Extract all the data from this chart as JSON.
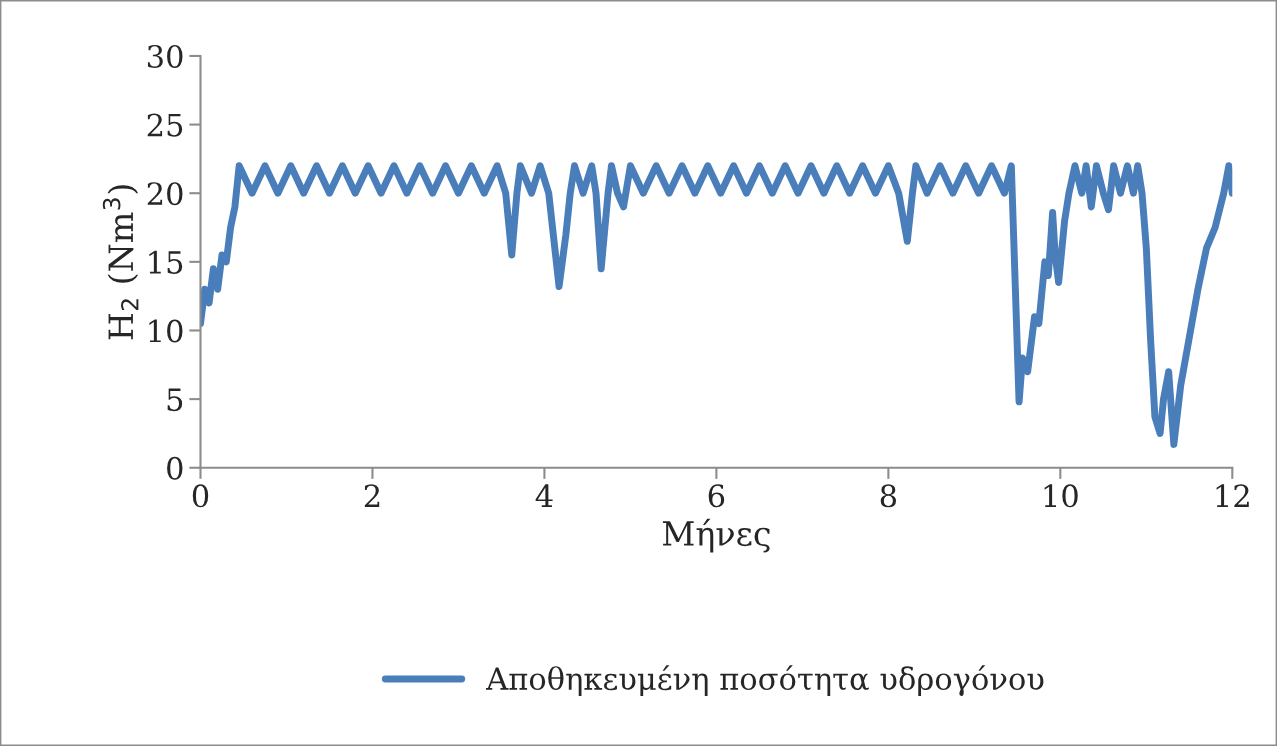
{
  "chart_data": {
    "type": "line",
    "xlabel": "Μήνες",
    "ylabel": "H$_{2}$ (Nm$^{3}$)",
    "x": [
      0,
      0.05,
      0.1,
      0.15,
      0.2,
      0.25,
      0.3,
      0.35,
      0.4,
      0.45,
      0.6,
      0.75,
      0.9,
      1.05,
      1.2,
      1.35,
      1.5,
      1.65,
      1.8,
      1.95,
      2.1,
      2.25,
      2.4,
      2.55,
      2.7,
      2.85,
      3.0,
      3.15,
      3.3,
      3.45,
      3.55,
      3.62,
      3.68,
      3.72,
      3.85,
      3.95,
      4.05,
      4.17,
      4.25,
      4.3,
      4.35,
      4.45,
      4.55,
      4.6,
      4.66,
      4.74,
      4.78,
      4.85,
      4.92,
      5.0,
      5.15,
      5.3,
      5.45,
      5.6,
      5.75,
      5.9,
      6.05,
      6.2,
      6.35,
      6.5,
      6.65,
      6.8,
      6.95,
      7.1,
      7.25,
      7.4,
      7.55,
      7.7,
      7.85,
      8.0,
      8.12,
      8.22,
      8.28,
      8.32,
      8.45,
      8.6,
      8.75,
      8.9,
      9.05,
      9.2,
      9.35,
      9.43,
      9.52,
      9.56,
      9.62,
      9.7,
      9.75,
      9.82,
      9.86,
      9.91,
      9.94,
      9.98,
      10.05,
      10.1,
      10.17,
      10.25,
      10.3,
      10.36,
      10.42,
      10.5,
      10.56,
      10.62,
      10.7,
      10.78,
      10.85,
      10.9,
      10.95,
      11.0,
      11.05,
      11.1,
      11.16,
      11.2,
      11.26,
      11.32,
      11.4,
      11.5,
      11.6,
      11.7,
      11.8,
      11.9,
      11.96,
      12
    ],
    "series": [
      {
        "name": "Αποθηκευμένη ποσότητα υδρογόνου",
        "color": "#4a7ebb",
        "values": [
          10.5,
          13,
          12,
          14.5,
          13,
          15.5,
          15,
          17.5,
          19,
          22,
          20,
          22,
          20,
          22,
          20,
          22,
          20,
          22,
          20,
          22,
          20,
          22,
          20,
          22,
          20,
          22,
          20,
          22,
          20,
          22,
          20,
          15.5,
          20,
          22,
          20,
          22,
          20,
          13.2,
          17,
          20,
          22,
          20,
          22,
          20,
          14.5,
          20,
          22,
          20,
          19,
          22,
          20,
          22,
          20,
          22,
          20,
          22,
          20,
          22,
          20,
          22,
          20,
          22,
          20,
          22,
          20,
          22,
          20,
          22,
          20,
          22,
          20,
          16.5,
          20,
          22,
          20,
          22,
          20,
          22,
          20,
          22,
          20,
          22,
          4.8,
          8,
          7,
          11,
          10.5,
          15,
          14,
          18.6,
          15.5,
          13.5,
          18,
          20,
          22,
          20,
          22,
          19,
          22,
          20,
          18.8,
          22,
          20,
          22,
          20,
          22,
          20,
          16,
          9.3,
          3.7,
          2.5,
          5,
          7,
          1.7,
          6,
          9.5,
          13,
          16,
          17.5,
          20,
          22,
          20
        ]
      }
    ],
    "xlim": [
      0,
      12
    ],
    "xticks": [
      0,
      2,
      4,
      6,
      8,
      10,
      12
    ],
    "ylim": [
      0,
      30
    ],
    "yticks": [
      0,
      5,
      10,
      15,
      20,
      25,
      30
    ],
    "grid": false,
    "legend": "bottom",
    "marker": "none",
    "line_style": "solid"
  }
}
